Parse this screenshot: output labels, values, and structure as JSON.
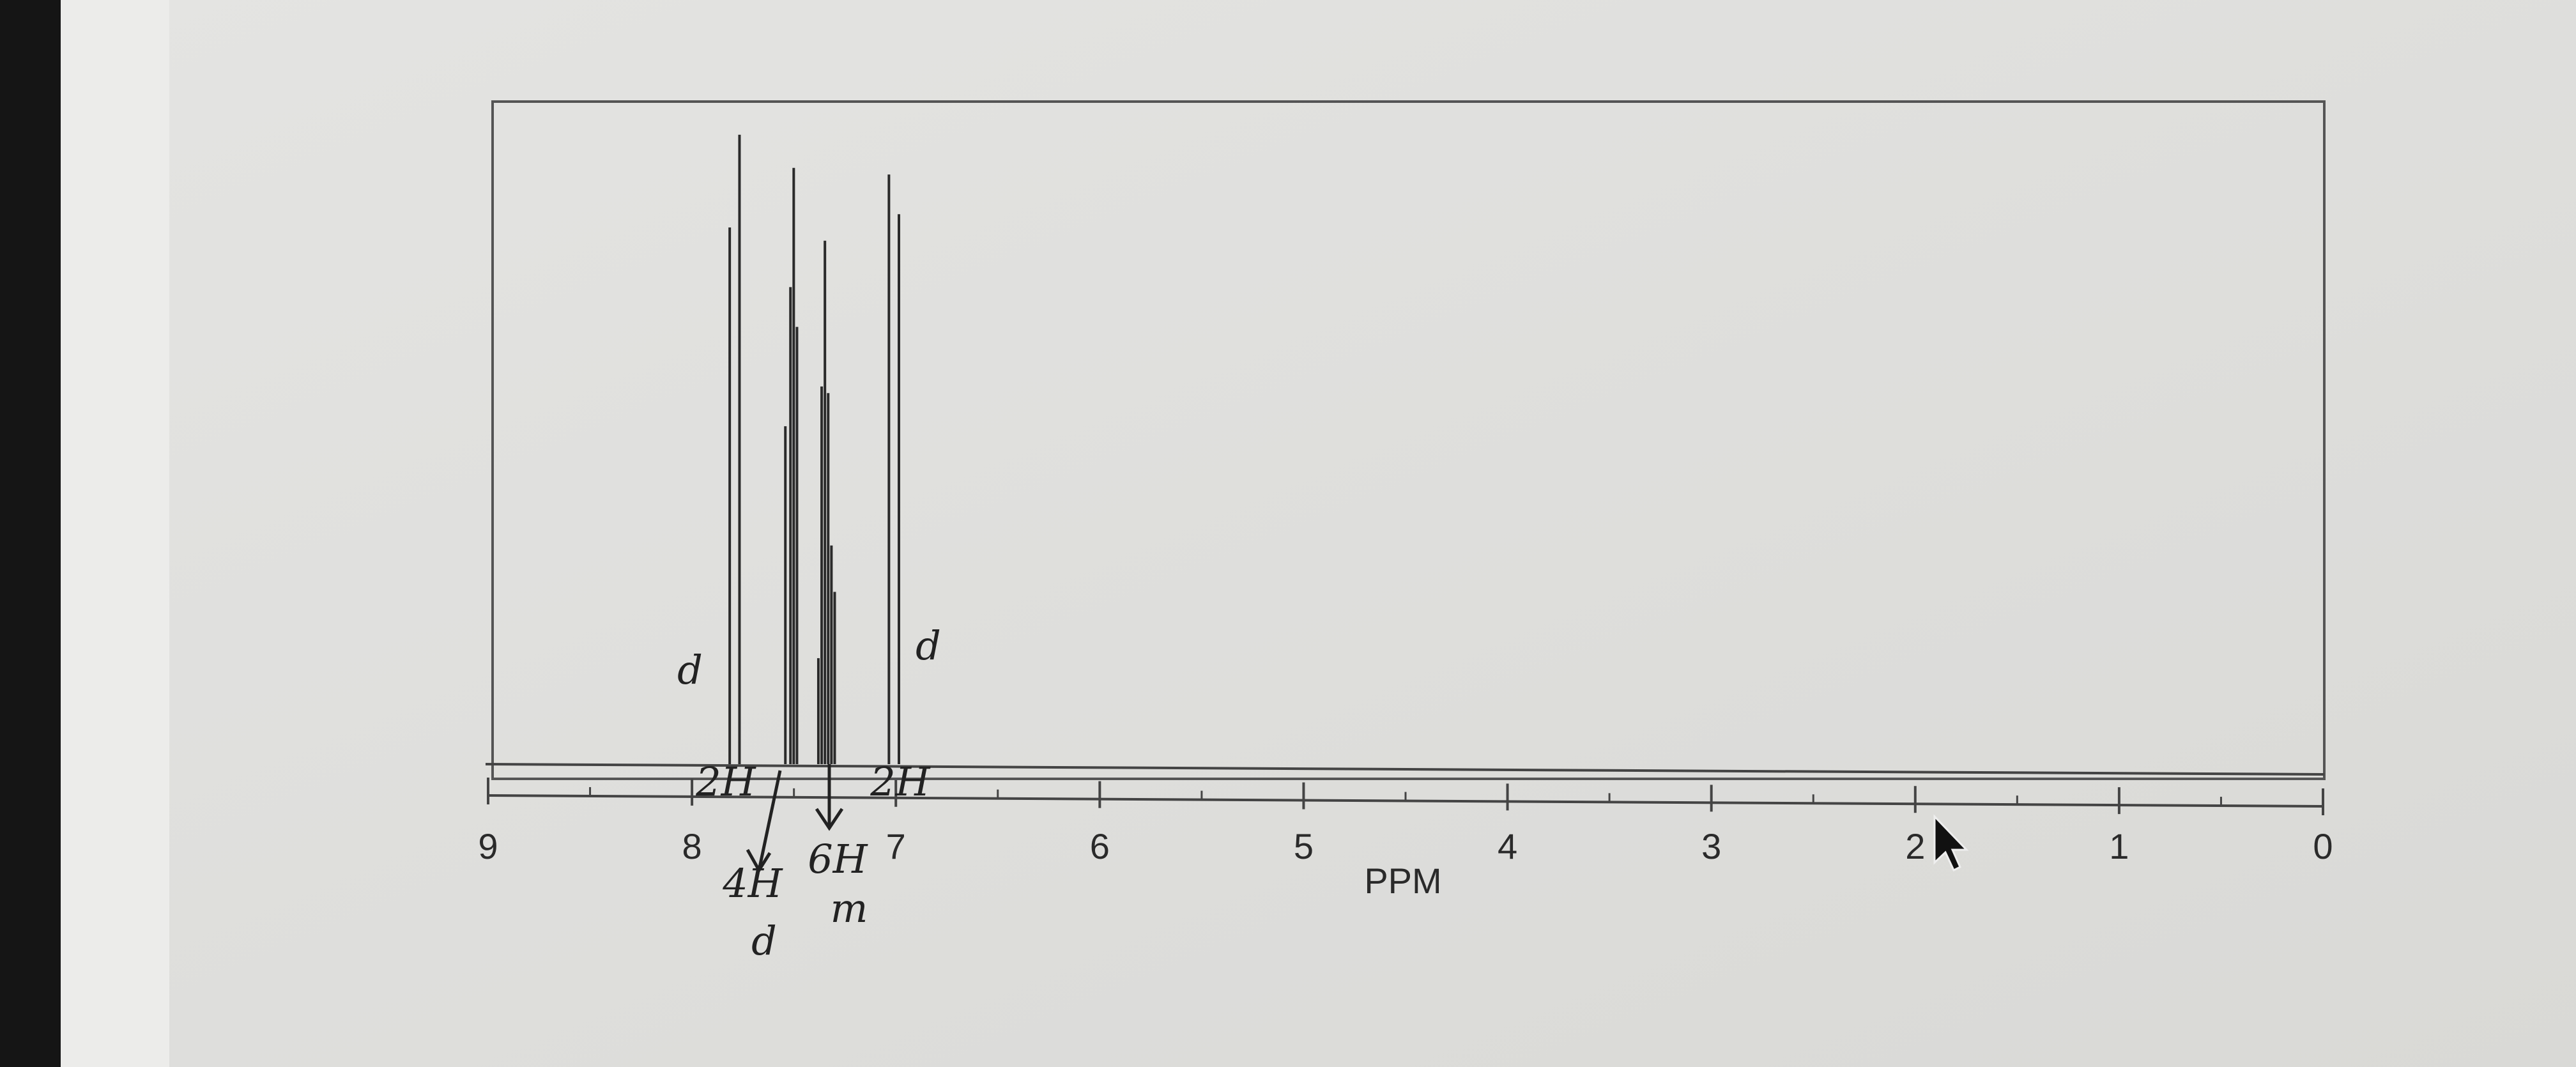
{
  "chart_data": {
    "type": "stem",
    "x_label": "PPM",
    "x": [
      7.815,
      7.767,
      7.542,
      7.517,
      7.501,
      7.485,
      7.38,
      7.364,
      7.348,
      7.332,
      7.316,
      7.3,
      7.034,
      6.985
    ],
    "values": [
      81,
      95,
      51,
      72,
      90,
      66,
      16,
      57,
      79,
      56,
      33,
      26,
      89,
      83
    ],
    "color": "#2a2a2a",
    "xlim": [
      9,
      0
    ],
    "xticks": [
      9,
      8,
      7,
      6,
      5,
      4,
      3,
      2,
      1,
      0
    ],
    "xminor": [
      8.5,
      7.5,
      6.5,
      5.5,
      4.5,
      3.5,
      2.5,
      1.5,
      0.5
    ],
    "ylim": [
      0,
      100
    ],
    "annotations": [
      "d",
      "d",
      "2H",
      "2H",
      "4H",
      "d",
      "6H",
      "m"
    ]
  }
}
